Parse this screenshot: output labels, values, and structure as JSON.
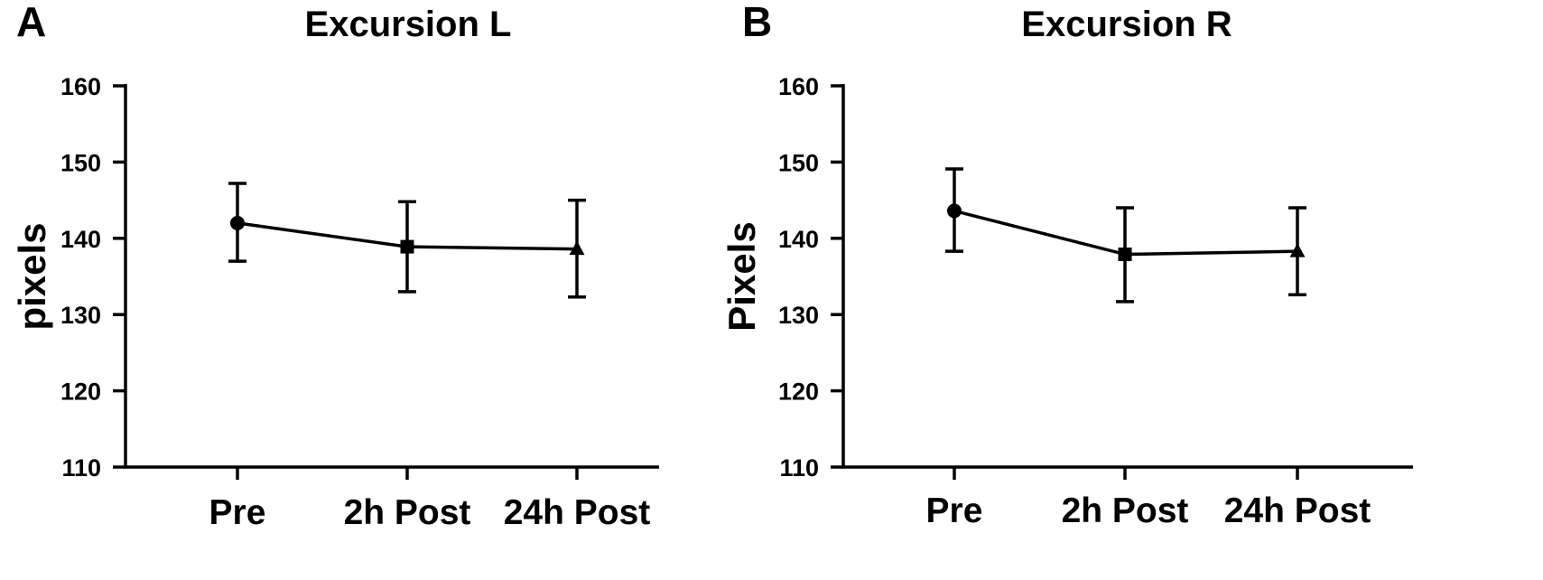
{
  "chart_data": [
    {
      "panel": "A",
      "type": "line",
      "title": "Excursion L",
      "xlabel": "",
      "ylabel": "pixels",
      "ylim": [
        110,
        160
      ],
      "yticks": [
        110,
        120,
        130,
        140,
        150,
        160
      ],
      "categories": [
        "Pre",
        "2h Post",
        "24h Post"
      ],
      "markers": [
        "circle",
        "square",
        "triangle"
      ],
      "series": [
        {
          "values": [
            142.0,
            138.9,
            138.6
          ],
          "err_low": [
            137.0,
            133.0,
            132.3
          ],
          "err_high": [
            147.2,
            144.8,
            145.0
          ]
        }
      ],
      "grid": false,
      "legend": "none"
    },
    {
      "panel": "B",
      "type": "line",
      "title": "Excursion R",
      "xlabel": "",
      "ylabel": "Pixels",
      "ylim": [
        110,
        160
      ],
      "yticks": [
        110,
        120,
        130,
        140,
        150,
        160
      ],
      "categories": [
        "Pre",
        "2h Post",
        "24h Post"
      ],
      "markers": [
        "circle",
        "square",
        "triangle"
      ],
      "series": [
        {
          "values": [
            143.6,
            137.9,
            138.3
          ],
          "err_low": [
            138.3,
            131.7,
            132.6
          ],
          "err_high": [
            149.1,
            144.0,
            144.0
          ]
        }
      ],
      "grid": false,
      "legend": "none"
    }
  ]
}
